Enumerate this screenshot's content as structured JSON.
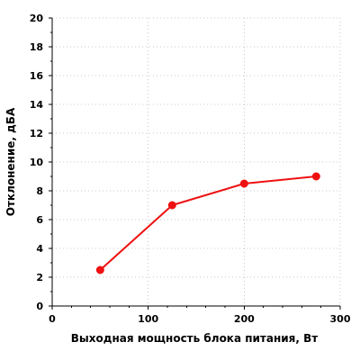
{
  "chart_data": {
    "type": "line",
    "title": "",
    "xlabel": "Выходная мощность блока питания, Вт",
    "ylabel": "Отклонение, дБА",
    "xlim": [
      0,
      300
    ],
    "ylim": [
      0,
      20
    ],
    "xticks": [
      0,
      100,
      200,
      300
    ],
    "xtick_labels": [
      "0",
      "100",
      "200",
      "300"
    ],
    "yticks": [
      0,
      2,
      4,
      6,
      8,
      10,
      12,
      14,
      16,
      18,
      20
    ],
    "ytick_labels": [
      "0",
      "2",
      "4",
      "6",
      "8",
      "10",
      "12",
      "14",
      "16",
      "18",
      "20"
    ],
    "grid": true,
    "legend": "none",
    "series": [
      {
        "color": "#ee1111",
        "marker": "circle",
        "x": [
          50,
          125,
          200,
          275
        ],
        "y": [
          2.5,
          7,
          8.5,
          9
        ]
      }
    ]
  }
}
